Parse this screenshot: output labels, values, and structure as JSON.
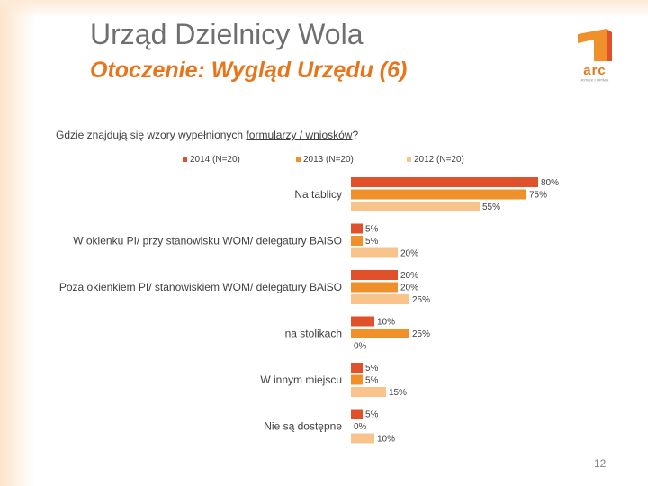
{
  "header": {
    "title": "Urząd Dzielnicy Wola",
    "subtitle": "Otoczenie: Wygląd Urzędu (6)",
    "logo_text": "arc",
    "logo_tagline": "RYNEK I OPINIA"
  },
  "question": {
    "before": "Gdzie znajdują się wzory wypełnionych ",
    "underlined": "formularzy / wniosków",
    "after": "?"
  },
  "page_number": "12",
  "colors": {
    "accent": "#e8751a",
    "series_2014": "#e0502a",
    "series_2013": "#f0902a",
    "series_2012": "#f8c48c"
  },
  "chart_data": {
    "type": "bar",
    "orientation": "horizontal",
    "categories": [
      "Na tablicy",
      "W okienku PI/ przy stanowisku WOM/ delegatury BAiSO",
      "Poza okienkiem PI/ stanowiskiem WOM/ delegatury BAiSO",
      "na stolikach",
      "W innym miejscu",
      "Nie są dostępne"
    ],
    "series": [
      {
        "name": "2014 (N=20)",
        "values": [
          80,
          5,
          20,
          10,
          5,
          5
        ],
        "labels": [
          "80%",
          "5%",
          "20%",
          "10%",
          "5%",
          "5%"
        ]
      },
      {
        "name": "2013 (N=20)",
        "values": [
          75,
          5,
          20,
          25,
          5,
          0
        ],
        "labels": [
          "75%",
          "5%",
          "20%",
          "25%",
          "5%",
          "0%"
        ]
      },
      {
        "name": "2012 (N=20)",
        "values": [
          55,
          20,
          25,
          0,
          15,
          10
        ],
        "labels": [
          "55%",
          "20%",
          "25%",
          "0%",
          "15%",
          "10%"
        ]
      }
    ],
    "unit": "%",
    "legend_position": "top",
    "grid": false
  }
}
